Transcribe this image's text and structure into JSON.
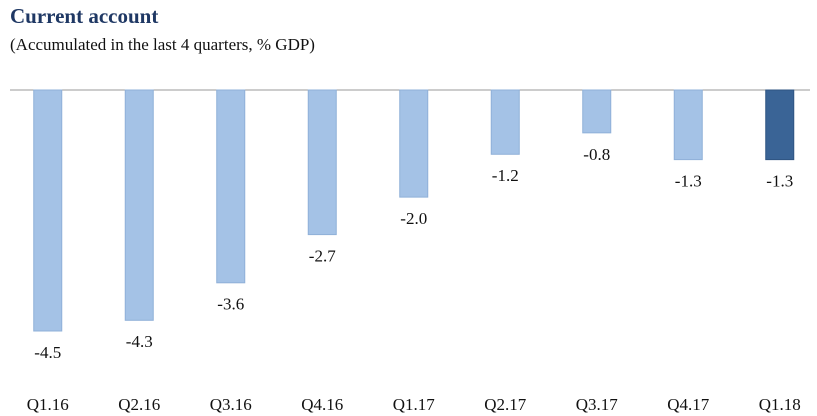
{
  "chart_data": {
    "type": "bar",
    "title": "Current account",
    "subtitle": "(Accumulated in the last 4 quarters, % GDP)",
    "categories": [
      "Q1.16",
      "Q2.16",
      "Q3.16",
      "Q4.16",
      "Q1.17",
      "Q2.17",
      "Q3.17",
      "Q4.17",
      "Q1.18"
    ],
    "values": [
      -4.5,
      -4.3,
      -3.6,
      -2.7,
      -2.0,
      -1.2,
      -0.8,
      -1.3,
      -1.3
    ],
    "value_labels": [
      "-4.5",
      "-4.3",
      "-3.6",
      "-2.7",
      "-2.0",
      "-1.2",
      "-0.8",
      "-1.3",
      "-1.3"
    ],
    "colors": [
      "#a4c2e6",
      "#a4c2e6",
      "#a4c2e6",
      "#a4c2e6",
      "#a4c2e6",
      "#a4c2e6",
      "#a4c2e6",
      "#a4c2e6",
      "#3a6496"
    ]
  }
}
